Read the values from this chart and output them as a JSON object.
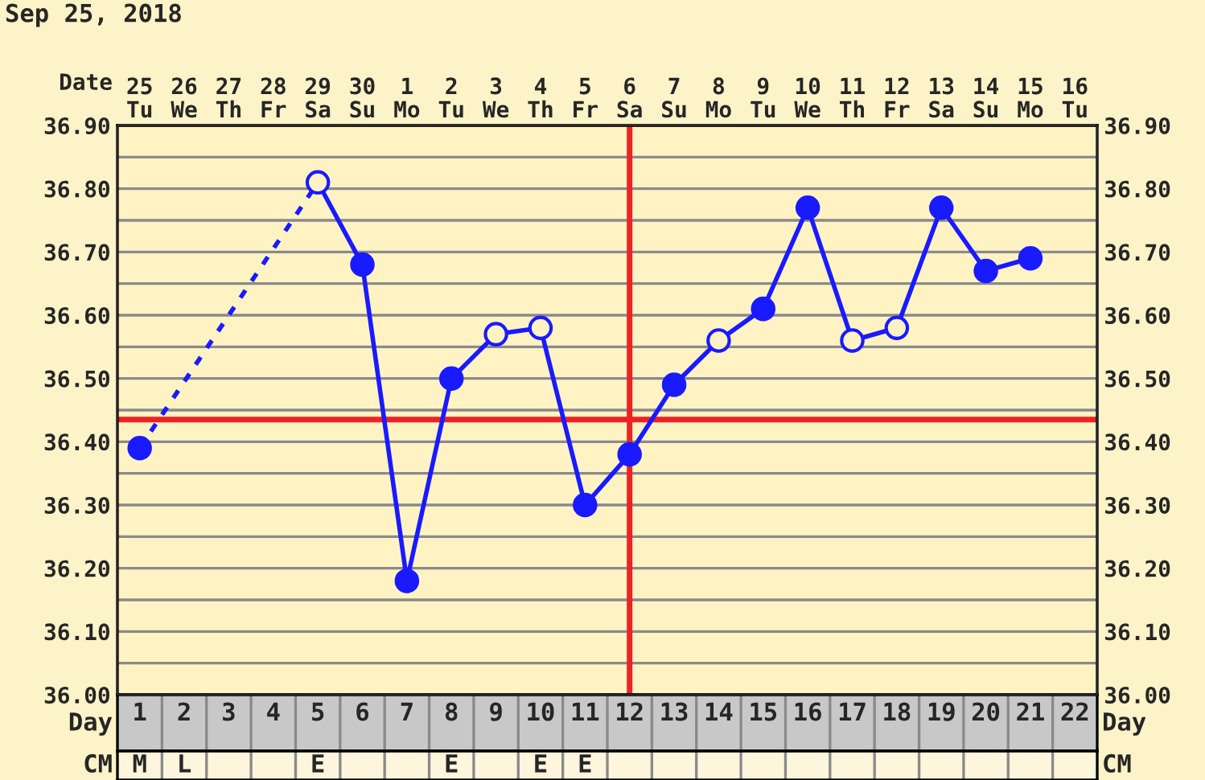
{
  "chart_data": {
    "type": "line",
    "title": "Sep 25, 2018",
    "xlabel": "Day",
    "x2label": "Date",
    "categories": [
      "1",
      "2",
      "3",
      "4",
      "5",
      "6",
      "7",
      "8",
      "9",
      "10",
      "11",
      "12",
      "13",
      "14",
      "15",
      "16",
      "17",
      "18",
      "19",
      "20",
      "21",
      "22"
    ],
    "series": [
      {
        "color": "#1a1aff",
        "line_style": "solid",
        "values": [
          null,
          null,
          null,
          null,
          36.81,
          36.68,
          36.18,
          36.5,
          36.57,
          36.58,
          36.3,
          36.38,
          36.49,
          36.56,
          36.61,
          36.77,
          36.56,
          36.58,
          36.77,
          36.67,
          36.69,
          null
        ]
      },
      {
        "color": "#1a1aff",
        "line_style": "dashed",
        "values": [
          36.39,
          null,
          null,
          null,
          36.81,
          null,
          null,
          null,
          null,
          null,
          null,
          null,
          null,
          null,
          null,
          null,
          null,
          null,
          null,
          null,
          null,
          null
        ]
      },
      {
        "type": "scatter",
        "color": "#1a1aff",
        "marker": "circle",
        "values": [
          36.39,
          null,
          null,
          null,
          null,
          36.68,
          36.18,
          36.5,
          null,
          null,
          36.3,
          36.38,
          36.49,
          null,
          36.61,
          36.77,
          null,
          null,
          36.77,
          36.67,
          36.69,
          null
        ]
      },
      {
        "type": "scatter",
        "color": "#1a1aff",
        "colors": [
          "#fff3c4",
          "#fff3c4",
          "#fff3c4",
          "#fff3c4",
          "#fff3c4",
          "#fff3c4",
          "#fff3c4",
          "#fff3c4",
          "#fff3c4",
          "#fff3c4",
          "#fff3c4",
          "#fff3c4",
          "#fff3c4",
          "#fff3c4",
          "#fff3c4",
          "#fff3c4",
          "#fff3c4",
          "#fff3c4",
          "#fff3c4",
          "#fff3c4",
          "#fff3c4",
          "#fff3c4"
        ],
        "marker": "circle",
        "values": [
          null,
          null,
          null,
          null,
          36.81,
          null,
          null,
          null,
          36.57,
          36.58,
          null,
          null,
          null,
          36.56,
          null,
          null,
          36.56,
          36.58,
          null,
          null,
          null,
          null
        ]
      }
    ],
    "ylim": [
      36.0,
      36.9
    ],
    "yticks": [
      {
        "value": 36.0,
        "label": "36.00"
      },
      {
        "value": 36.05,
        "label": null
      },
      {
        "value": 36.1,
        "label": "36.10"
      },
      {
        "value": 36.15,
        "label": null
      },
      {
        "value": 36.2,
        "label": "36.20"
      },
      {
        "value": 36.25,
        "label": null
      },
      {
        "value": 36.3,
        "label": "36.30"
      },
      {
        "value": 36.35,
        "label": null
      },
      {
        "value": 36.4,
        "label": "36.40"
      },
      {
        "value": 36.45,
        "label": null
      },
      {
        "value": 36.5,
        "label": "36.50"
      },
      {
        "value": 36.55,
        "label": null
      },
      {
        "value": 36.6,
        "label": "36.60"
      },
      {
        "value": 36.65,
        "label": null
      },
      {
        "value": 36.7,
        "label": "36.70"
      },
      {
        "value": 36.75,
        "label": null
      },
      {
        "value": 36.8,
        "label": "36.80"
      },
      {
        "value": 36.85,
        "label": null
      },
      {
        "value": 36.9,
        "label": "36.90"
      }
    ],
    "y2lim": [
      36.0,
      36.9
    ],
    "y2ticks": [
      {
        "value": 36.0,
        "label": "36.00"
      },
      {
        "value": 36.05,
        "label": null
      },
      {
        "value": 36.1,
        "label": "36.10"
      },
      {
        "value": 36.15,
        "label": null
      },
      {
        "value": 36.2,
        "label": "36.20"
      },
      {
        "value": 36.25,
        "label": null
      },
      {
        "value": 36.3,
        "label": "36.30"
      },
      {
        "value": 36.35,
        "label": null
      },
      {
        "value": 36.4,
        "label": "36.40"
      },
      {
        "value": 36.45,
        "label": null
      },
      {
        "value": 36.5,
        "label": "36.50"
      },
      {
        "value": 36.55,
        "label": null
      },
      {
        "value": 36.6,
        "label": "36.60"
      },
      {
        "value": 36.65,
        "label": null
      },
      {
        "value": 36.7,
        "label": "36.70"
      },
      {
        "value": 36.75,
        "label": null
      },
      {
        "value": 36.8,
        "label": "36.80"
      },
      {
        "value": 36.85,
        "label": null
      },
      {
        "value": 36.9,
        "label": "36.90"
      }
    ],
    "ref_lines": [
      {
        "axis": "y",
        "value": 36.435,
        "color": "#ee2222"
      },
      {
        "axis": "x",
        "value": "12",
        "color": "#ee2222"
      }
    ],
    "grid": true,
    "annotations": [
      "CM",
      "25\nTu",
      "26\nWe",
      "27\nTh",
      "28\nFr",
      "29\nSa",
      "30\nSu",
      "1\nMo",
      "2\nTu",
      "3\nWe",
      "4\nTh",
      "5\nFr",
      "6\nSa",
      "7\nSu",
      "8\nMo",
      "9\nTu",
      "10\nWe",
      "11\nTh",
      "12\nFr",
      "13\nSa",
      "14\nSu",
      "15\nMo",
      "16\nTu",
      "M",
      "L",
      null,
      null,
      "E",
      null,
      null,
      "E",
      null,
      "E",
      "E",
      null,
      null,
      null,
      null,
      null,
      null,
      null,
      null,
      null,
      null,
      null
    ]
  }
}
